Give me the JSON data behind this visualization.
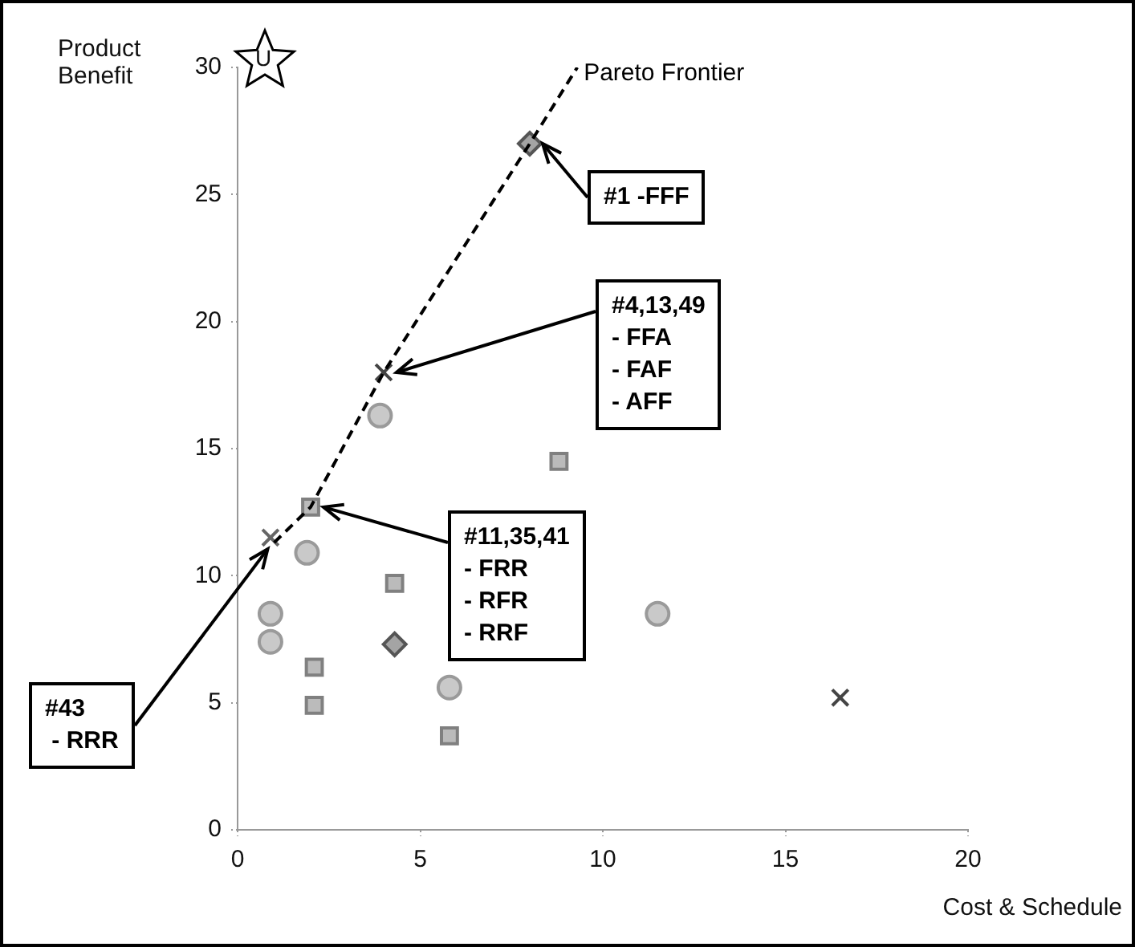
{
  "chart_data": {
    "type": "scatter",
    "xlabel": "Cost & Schedule",
    "ylabel": "Product Benefit",
    "xlim": [
      0,
      20
    ],
    "ylim": [
      0,
      30
    ],
    "xticks": [
      0,
      5,
      10,
      15,
      20
    ],
    "yticks": [
      0,
      5,
      10,
      15,
      20,
      25,
      30
    ],
    "grid": false,
    "legend": false,
    "series": [
      {
        "type": "line",
        "name": "Pareto Frontier",
        "color": "#000000",
        "marker": "none",
        "line_style": "dashed",
        "x": [
          1.0,
          2.0,
          4.0,
          8.0,
          9.3
        ],
        "values": [
          11.3,
          12.7,
          18,
          27,
          30
        ]
      },
      {
        "marker": "diamond",
        "color": "#555555",
        "x": [
          8.0,
          4.3
        ],
        "values": [
          27,
          7.3
        ]
      },
      {
        "marker": "cross",
        "color": "#444444",
        "x": [
          4.0,
          16.5
        ],
        "values": [
          18,
          5.2
        ]
      },
      {
        "marker": "circle",
        "color": "#9a9a9a",
        "x": [
          3.9,
          1.9,
          0.9,
          0.9,
          5.8,
          11.5
        ],
        "values": [
          16.3,
          10.9,
          8.5,
          7.4,
          5.6,
          8.5
        ]
      },
      {
        "marker": "square",
        "color": "#808080",
        "x": [
          8.8,
          2.0,
          4.3,
          2.1,
          2.1,
          5.8
        ],
        "values": [
          14.5,
          12.7,
          9.7,
          6.4,
          4.9,
          3.7
        ]
      },
      {
        "marker": "cross",
        "color": "#666666",
        "x": [
          0.9
        ],
        "values": [
          11.5
        ]
      }
    ],
    "annotations": [
      "U",
      {
        "text": "#1 -FFF",
        "x": 8.0,
        "y": 27
      },
      {
        "text": "#4,13,49\n- FFA\n- FAF\n- AFF",
        "x": 4.0,
        "y": 18
      },
      {
        "text": "#11,35,41\n- FRR\n- RFR\n- RRF",
        "x": 2.0,
        "y": 12.7
      },
      {
        "text": "#43\n - RRR",
        "x": 1.0,
        "y": 11.3
      }
    ]
  }
}
